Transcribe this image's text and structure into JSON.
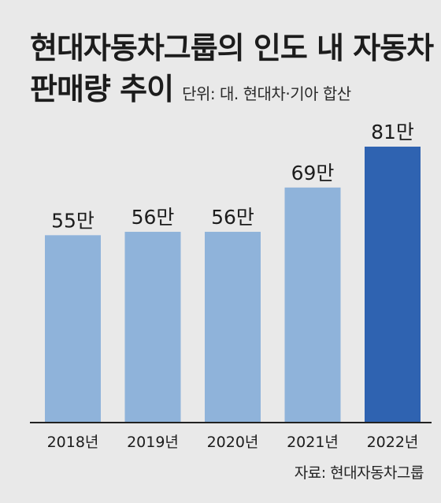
{
  "title": {
    "line1": "현대자동차그룹의 인도 내 자동차",
    "line2": "판매량 추이",
    "unit_note": "단위: 대. 현대차·기아 합산"
  },
  "source": "자료: 현대자동차그룹",
  "colors": {
    "background": "#e9e9e9",
    "bar_default": "#8fb3da",
    "bar_highlight": "#2f63b1",
    "axis": "#222222",
    "text": "#1c1c1c"
  },
  "chart_data": {
    "type": "bar",
    "title": "현대자동차그룹의 인도 내 자동차 판매량 추이",
    "unit": "단위: 대. 현대차·기아 합산",
    "categories": [
      "2018년",
      "2019년",
      "2020년",
      "2021년",
      "2022년"
    ],
    "values": [
      55,
      56,
      56,
      69,
      81
    ],
    "value_labels": [
      "55만",
      "56만",
      "56만",
      "69만",
      "81만"
    ],
    "highlight_index": 4,
    "xlabel": "",
    "ylabel": "",
    "ylim": [
      0,
      81
    ],
    "grid": false,
    "legend": "none"
  }
}
